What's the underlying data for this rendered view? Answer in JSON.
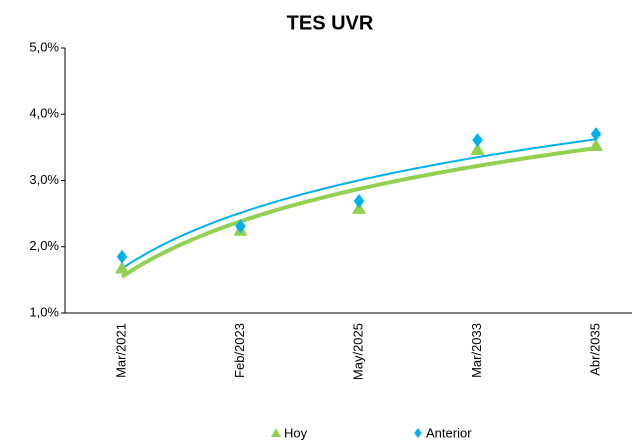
{
  "chart_data": {
    "type": "scatter",
    "title": "TES UVR",
    "categories": [
      "Mar/2021",
      "Feb/2023",
      "May/2025",
      "Mar/2033",
      "Abr/2035"
    ],
    "series": [
      {
        "name": "Hoy",
        "color": "#92d050",
        "marker": "triangle",
        "values": [
          1.68,
          2.25,
          2.58,
          3.47,
          3.53
        ]
      },
      {
        "name": "Anterior",
        "color": "#00b0f0",
        "marker": "diamond",
        "values": [
          1.85,
          2.31,
          2.69,
          3.61,
          3.7
        ]
      }
    ],
    "trendline": "logarithmic",
    "ylim": [
      1,
      5
    ],
    "yticks": [
      {
        "value": 1,
        "label": "1,0%"
      },
      {
        "value": 2,
        "label": "2,0%"
      },
      {
        "value": 3,
        "label": "3,0%"
      },
      {
        "value": 4,
        "label": "4,0%"
      },
      {
        "value": 5,
        "label": "5,0%"
      }
    ],
    "grid": false,
    "legend": "bottom"
  }
}
